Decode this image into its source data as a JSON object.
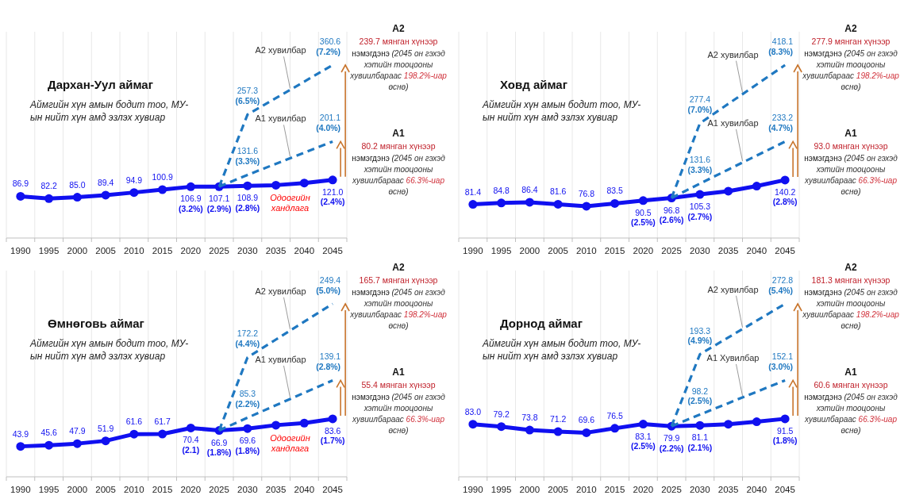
{
  "chart_data": [
    {
      "type": "line",
      "title": "Дархан-Уул аймаг",
      "subtitle": "Аймгийн хүн амын бодит тоо, МУ-ын нийт хүн амд эзлэх хувиар",
      "categories": [
        "1990",
        "1995",
        "2000",
        "2005",
        "2010",
        "2015",
        "2020",
        "2025",
        "2030",
        "2035",
        "2040",
        "2045"
      ],
      "grid": "x",
      "series": [
        {
          "name": "Одоогийн хандлага",
          "color": "#1010f0",
          "marker": "circle",
          "line_style": "solid",
          "values": [
            86.9,
            82.2,
            85.0,
            89.4,
            94.9,
            100.9,
            106.9,
            107.1,
            108.9,
            110.2,
            114.6,
            121.0
          ],
          "value_labels": [
            "86.9",
            "82.2",
            "85.0",
            "89.4",
            "94.9",
            "100.9",
            "106.9 (3.2%)",
            "107.1 (2.9%)",
            "108.9 (2.8%)",
            null,
            null,
            "121.0 (2.4%)"
          ]
        },
        {
          "name": "A2 хувилбар",
          "color": "#1f78c1",
          "marker": "none",
          "line_style": "dashed",
          "values": [
            null,
            null,
            null,
            null,
            null,
            null,
            null,
            107.1,
            257.3,
            291.7,
            326.1,
            360.6
          ],
          "value_labels": [
            null,
            null,
            null,
            null,
            null,
            null,
            null,
            null,
            "257.3 (6.5%)",
            null,
            null,
            "360.6 (7.2%)"
          ]
        },
        {
          "name": "A1 хувилбар",
          "color": "#1f78c1",
          "marker": "none",
          "line_style": "dashed",
          "values": [
            null,
            null,
            null,
            null,
            null,
            null,
            null,
            107.1,
            131.6,
            154.8,
            178.0,
            201.1
          ],
          "value_labels": [
            null,
            null,
            null,
            null,
            null,
            null,
            null,
            null,
            "131.6 (3.3%)",
            null,
            null,
            "201.1 (4.0%)"
          ]
        }
      ],
      "annotations": [
        "A2",
        "239.7 мянган хүнээр",
        "нэмэгдэнэ (2045 он гэхэд хэтийн тооцооны хувиилбараас 198.2%-иар өснө)",
        "A1",
        "80.2 мянган хүнээр",
        "нэмэгдэнэ (2045 он гэхэд хэтийн тооцооны хувиилбараас 66.3%-иар өснө)"
      ]
    },
    {
      "type": "line",
      "title": "Ховд аймаг",
      "subtitle": "Аймгийн хүн амын бодит тоо, МУ-ын нийт хүн амд эзлэх хувиар",
      "categories": [
        "1990",
        "1995",
        "2000",
        "2005",
        "2010",
        "2015",
        "2020",
        "2025",
        "2030",
        "2035",
        "2040",
        "2045"
      ],
      "grid": "x",
      "series": [
        {
          "color": "#1010f0",
          "marker": "circle",
          "line_style": "solid",
          "values": [
            81.4,
            84.8,
            86.4,
            81.6,
            76.8,
            83.5,
            90.5,
            96.8,
            105.3,
            113.2,
            125.5,
            140.2
          ],
          "value_labels": [
            "81.4",
            "84.8",
            "86.4",
            "81.6",
            "76.8",
            "83.5",
            "90.5 (2.5%)",
            "96.8 (2.6%)",
            "105.3 (2.7%)",
            null,
            null,
            "140.2 (2.8%)"
          ]
        },
        {
          "name": "A2 хувилбар",
          "color": "#1f78c1",
          "marker": "none",
          "line_style": "dashed",
          "values": [
            null,
            null,
            null,
            null,
            null,
            null,
            null,
            96.8,
            277.4,
            324.3,
            371.2,
            418.1
          ],
          "value_labels": [
            null,
            null,
            null,
            null,
            null,
            null,
            null,
            null,
            "277.4 (7.0%)",
            null,
            null,
            "418.1 (8.3%)"
          ]
        },
        {
          "name": "A1 хувилбар",
          "color": "#1f78c1",
          "marker": "none",
          "line_style": "dashed",
          "values": [
            null,
            null,
            null,
            null,
            null,
            null,
            null,
            96.8,
            131.6,
            165.5,
            199.3,
            233.2
          ],
          "value_labels": [
            null,
            null,
            null,
            null,
            null,
            null,
            null,
            null,
            "131.6 (3.3%)",
            null,
            null,
            "233.2 (4.7%)"
          ]
        }
      ],
      "annotations": [
        "A2",
        "277.9 мянган хүнээр",
        "нэмэгдэнэ (2045 он гэхэд хэтийн тооцооны хувиилбараас 198.2%-иар өснө)",
        "A1",
        "93.0 мянган хүнээр",
        "нэмэгдэнэ (2045 он гэхэд хэтийн тооцооны хувиилбараас 66.3%-иар өснө)"
      ]
    },
    {
      "type": "line",
      "title": "Өмнөговь аймаг",
      "subtitle": "Аймгийн хүн амын бодит тоо, МУ-ын нийт хүн амд эзлэх хувиар",
      "categories": [
        "1990",
        "1995",
        "2000",
        "2005",
        "2010",
        "2015",
        "2020",
        "2025",
        "2030",
        "2035",
        "2040",
        "2045"
      ],
      "grid": "x",
      "series": [
        {
          "name": "Одоогийн хандлага",
          "color": "#1010f0",
          "marker": "circle",
          "line_style": "solid",
          "values": [
            43.9,
            45.6,
            47.9,
            51.9,
            61.6,
            61.7,
            70.4,
            66.9,
            69.6,
            74.5,
            77.5,
            83.6
          ],
          "value_labels": [
            "43.9",
            "45.6",
            "47.9",
            "51.9",
            "61.6",
            "61.7",
            "70.4 (2.1)",
            "66.9 (1.8%)",
            "69.6 (1.8%)",
            null,
            null,
            "83.6 (1.7%)"
          ]
        },
        {
          "name": "A2 хувилбар",
          "color": "#1f78c1",
          "marker": "none",
          "line_style": "dashed",
          "values": [
            null,
            null,
            null,
            null,
            null,
            null,
            null,
            66.9,
            172.2,
            197.9,
            223.7,
            249.4
          ],
          "value_labels": [
            null,
            null,
            null,
            null,
            null,
            null,
            null,
            null,
            "172.2 (4.4%)",
            null,
            null,
            "249.4 (5.0%)"
          ]
        },
        {
          "name": "A1 хувилбар",
          "color": "#1f78c1",
          "marker": "none",
          "line_style": "dashed",
          "values": [
            null,
            null,
            null,
            null,
            null,
            null,
            null,
            66.9,
            85.3,
            103.2,
            121.2,
            139.1
          ],
          "value_labels": [
            null,
            null,
            null,
            null,
            null,
            null,
            null,
            null,
            "85.3 (2.2%)",
            null,
            null,
            "139.1 (2.8%)"
          ]
        }
      ],
      "annotations": [
        "A2",
        "165.7 мянган хүнээр",
        "нэмэгдэнэ (2045 он гэхэд хэтийн тооцооны хувиилбараас 198.2%-иар өснө)",
        "A1",
        "55.4 мянган хүнээр",
        "нэмэгдэнэ (2045 он гэхэд хэтийн тооцооны хувиилбараас 66.3%-иар өснө)"
      ]
    },
    {
      "type": "line",
      "title": "Дорнод аймаг",
      "subtitle": "Аймгийн хүн амын бодит тоо, МУ-ын нийт хүн амд эзлэх хувиар",
      "categories": [
        "1990",
        "1995",
        "2000",
        "2005",
        "2010",
        "2015",
        "2020",
        "2025",
        "2030",
        "2035",
        "2040",
        "2045"
      ],
      "grid": "x",
      "series": [
        {
          "color": "#1010f0",
          "marker": "circle",
          "line_style": "solid",
          "values": [
            83.0,
            79.2,
            73.8,
            71.2,
            69.6,
            76.5,
            83.1,
            79.9,
            81.1,
            83.0,
            86.9,
            91.5
          ],
          "value_labels": [
            "83.0",
            "79.2",
            "73.8",
            "71.2",
            "69.6",
            "76.5",
            "83.1 (2.5%)",
            "79.9 (2.2%)",
            "81.1 (2.1%)",
            null,
            null,
            "91.5 (1.8%)"
          ]
        },
        {
          "name": "A2 хувилбар",
          "color": "#1f78c1",
          "marker": "none",
          "line_style": "dashed",
          "values": [
            null,
            null,
            null,
            null,
            null,
            null,
            null,
            79.9,
            193.3,
            219.8,
            246.3,
            272.8
          ],
          "value_labels": [
            null,
            null,
            null,
            null,
            null,
            null,
            null,
            null,
            "193.3 (4.9%)",
            null,
            null,
            "272.8 (5.4%)"
          ]
        },
        {
          "name": "A1 Хувилбар",
          "color": "#1f78c1",
          "marker": "none",
          "line_style": "dashed",
          "values": [
            null,
            null,
            null,
            null,
            null,
            null,
            null,
            79.9,
            98.2,
            116.2,
            134.2,
            152.1
          ],
          "value_labels": [
            null,
            null,
            null,
            null,
            null,
            null,
            null,
            null,
            "98.2 (2.5%)",
            null,
            null,
            "152.1 (3.0%)"
          ]
        }
      ],
      "annotations": [
        "A2",
        "181.3 мянган хүнээр",
        "нэмэгдэнэ (2045 он гэхэд хэтийн тооцооны хувиилбараас 198.2%-иар өснө)",
        "A1",
        "60.6 мянган хүнээр",
        "нэмэгдэнэ (2045 он гэхэд хэтийн тооцооны хувиилбараас 66.3%-иар өснө)"
      ]
    }
  ]
}
